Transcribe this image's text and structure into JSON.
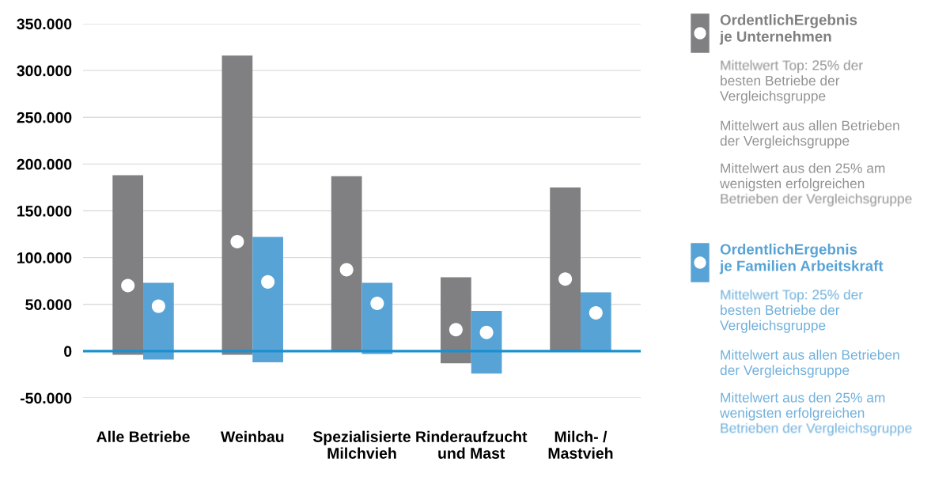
{
  "chart_data": {
    "type": "bar",
    "categories": [
      "Alle Betriebe",
      "Weinbau",
      "Spezialisierte\nMilchvieh",
      "Rinderaufzucht\nund Mast",
      "Milch- /\nMastvieh"
    ],
    "series": [
      {
        "name": "OrdentlichErgebnis\nje Unternehmen",
        "color": "#808083",
        "base": [
          -4000,
          -4000,
          -1000,
          -13000,
          -1000
        ],
        "values": [
          192000,
          320000,
          188000,
          92000,
          176000
        ]
      },
      {
        "name": "OrdentlichErgebnis\nje Familien Arbeitskraft",
        "color": "#58a3d6",
        "base": [
          -9000,
          -12000,
          -3000,
          -24000,
          -1000
        ],
        "values": [
          82000,
          134000,
          76000,
          67000,
          64000
        ]
      },
      {
        "type": "scatter",
        "color": "#ffffff",
        "x": [
          "Alle Betriebe",
          "Weinbau",
          "Spezialisierte\nMilchvieh",
          "Rinderaufzucht\nund Mast",
          "Milch- /\nMastvieh"
        ],
        "values": [
          70000,
          117000,
          87000,
          23000,
          77000
        ]
      },
      {
        "type": "scatter",
        "color": "#ffffff",
        "x": [
          "Alle Betriebe",
          "Weinbau",
          "Spezialisierte\nMilchvieh",
          "Rinderaufzucht\nund Mast",
          "Milch- /\nMastvieh"
        ],
        "values": [
          48000,
          74000,
          51000,
          20000,
          41000
        ]
      }
    ],
    "ylim": [
      -50000,
      350000
    ],
    "yticks": [
      {
        "value": -50000,
        "label": "-50.000"
      },
      0,
      {
        "value": 50000,
        "label": "50.000"
      },
      {
        "value": 100000,
        "label": "100.000"
      },
      {
        "value": 150000,
        "label": "150.000"
      },
      {
        "value": 200000,
        "label": "200.000"
      },
      {
        "value": 250000,
        "label": "250.000"
      },
      {
        "value": 300000,
        "label": "300.000"
      },
      {
        "value": 350000,
        "label": "350.000"
      }
    ],
    "grid": "y",
    "marker": "circle",
    "legend": "right",
    "ref_lines": [
      {
        "axis": "y",
        "value": 0,
        "color": "#1a90d0"
      }
    ],
    "annotations": [
      "Mittelwert Top: 25% der\nbesten Betriebe der\nVergleichsgruppe",
      "Mittelwert aus allen Betrieben\nder Vergleichsgruppe",
      "Mittelwert aus den 25% am\nwenigsten erfolgreichen\nBetrieben der Vergleichsgruppe",
      "Mittelwert Top: 25% der\nbesten Betriebe der\nVergleichsgruppe",
      "Mittelwert aus allen Betrieben\nder Vergleichsgruppe",
      "Mittelwert aus den 25% am\nwenigsten erfolgreichen\nBetrieben der Vergleichsgruppe"
    ]
  }
}
